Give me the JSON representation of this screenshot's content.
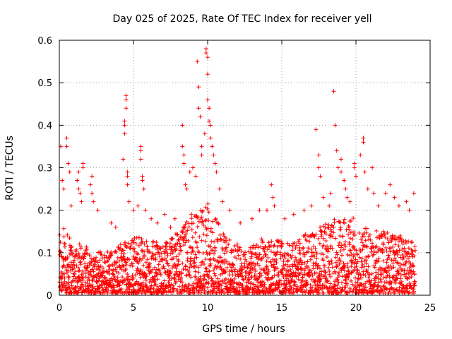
{
  "chart_data": {
    "type": "scatter",
    "title": "Day 025 of 2025, Rate Of TEC Index for receiver yell",
    "xlabel": "GPS time / hours",
    "ylabel": "ROTI / TECUs",
    "xlim": [
      0,
      25
    ],
    "ylim": [
      0,
      0.6
    ],
    "x_ticks": [
      "0",
      "5",
      "10",
      "15",
      "20",
      "25"
    ],
    "y_ticks": [
      "0",
      "0.1",
      "0.2",
      "0.3",
      "0.4",
      "0.5",
      "0.6"
    ],
    "grid": true,
    "marker": "+",
    "color": "#ff0000",
    "series": [
      {
        "points": [
          [
            0.1,
            0.35
          ],
          [
            0.2,
            0.27
          ],
          [
            0.3,
            0.25
          ],
          [
            0.5,
            0.37
          ],
          [
            0.5,
            0.35
          ],
          [
            0.6,
            0.31
          ],
          [
            0.7,
            0.29
          ],
          [
            0.8,
            0.21
          ],
          [
            1.2,
            0.27
          ],
          [
            1.3,
            0.25
          ],
          [
            1.3,
            0.29
          ],
          [
            1.4,
            0.24
          ],
          [
            1.5,
            0.22
          ],
          [
            1.6,
            0.31
          ],
          [
            1.6,
            0.3
          ],
          [
            2.1,
            0.26
          ],
          [
            2.2,
            0.28
          ],
          [
            2.2,
            0.24
          ],
          [
            2.3,
            0.22
          ],
          [
            2.6,
            0.2
          ],
          [
            3.5,
            0.17
          ],
          [
            3.8,
            0.16
          ],
          [
            4.3,
            0.32
          ],
          [
            4.4,
            0.41
          ],
          [
            4.4,
            0.4
          ],
          [
            4.4,
            0.38
          ],
          [
            4.5,
            0.47
          ],
          [
            4.5,
            0.46
          ],
          [
            4.5,
            0.44
          ],
          [
            4.6,
            0.29
          ],
          [
            4.6,
            0.28
          ],
          [
            4.6,
            0.26
          ],
          [
            4.7,
            0.22
          ],
          [
            5.0,
            0.2
          ],
          [
            5.3,
            0.21
          ],
          [
            5.5,
            0.35
          ],
          [
            5.5,
            0.34
          ],
          [
            5.5,
            0.32
          ],
          [
            5.6,
            0.28
          ],
          [
            5.6,
            0.27
          ],
          [
            5.7,
            0.25
          ],
          [
            5.8,
            0.2
          ],
          [
            6.2,
            0.18
          ],
          [
            6.6,
            0.17
          ],
          [
            7.1,
            0.19
          ],
          [
            7.5,
            0.16
          ],
          [
            7.8,
            0.18
          ],
          [
            8.3,
            0.4
          ],
          [
            8.3,
            0.35
          ],
          [
            8.4,
            0.33
          ],
          [
            8.4,
            0.31
          ],
          [
            8.5,
            0.26
          ],
          [
            8.6,
            0.25
          ],
          [
            8.8,
            0.29
          ],
          [
            9.0,
            0.3
          ],
          [
            9.2,
            0.28
          ],
          [
            9.3,
            0.55
          ],
          [
            9.4,
            0.49
          ],
          [
            9.4,
            0.44
          ],
          [
            9.5,
            0.42
          ],
          [
            9.6,
            0.35
          ],
          [
            9.6,
            0.33
          ],
          [
            9.8,
            0.38
          ],
          [
            9.9,
            0.58
          ],
          [
            9.9,
            0.57
          ],
          [
            10.0,
            0.56
          ],
          [
            10.0,
            0.52
          ],
          [
            10.0,
            0.46
          ],
          [
            10.1,
            0.44
          ],
          [
            10.1,
            0.41
          ],
          [
            10.2,
            0.4
          ],
          [
            10.2,
            0.37
          ],
          [
            10.3,
            0.35
          ],
          [
            10.4,
            0.33
          ],
          [
            10.5,
            0.31
          ],
          [
            10.6,
            0.29
          ],
          [
            10.8,
            0.25
          ],
          [
            11.0,
            0.22
          ],
          [
            11.5,
            0.2
          ],
          [
            12.2,
            0.17
          ],
          [
            13.0,
            0.18
          ],
          [
            13.5,
            0.2
          ],
          [
            14.0,
            0.2
          ],
          [
            14.3,
            0.26
          ],
          [
            14.4,
            0.23
          ],
          [
            14.5,
            0.21
          ],
          [
            15.2,
            0.18
          ],
          [
            15.8,
            0.19
          ],
          [
            16.5,
            0.2
          ],
          [
            17.0,
            0.21
          ],
          [
            17.3,
            0.39
          ],
          [
            17.5,
            0.33
          ],
          [
            17.5,
            0.3
          ],
          [
            17.6,
            0.28
          ],
          [
            17.8,
            0.23
          ],
          [
            18.2,
            0.21
          ],
          [
            18.3,
            0.24
          ],
          [
            18.5,
            0.48
          ],
          [
            18.6,
            0.4
          ],
          [
            18.7,
            0.34
          ],
          [
            18.8,
            0.3
          ],
          [
            19.0,
            0.32
          ],
          [
            19.0,
            0.29
          ],
          [
            19.2,
            0.27
          ],
          [
            19.3,
            0.25
          ],
          [
            19.4,
            0.23
          ],
          [
            19.6,
            0.22
          ],
          [
            19.9,
            0.31
          ],
          [
            19.9,
            0.3
          ],
          [
            20.0,
            0.28
          ],
          [
            20.3,
            0.33
          ],
          [
            20.5,
            0.37
          ],
          [
            20.5,
            0.36
          ],
          [
            20.6,
            0.29
          ],
          [
            20.8,
            0.25
          ],
          [
            21.1,
            0.3
          ],
          [
            21.2,
            0.24
          ],
          [
            21.5,
            0.21
          ],
          [
            22.0,
            0.24
          ],
          [
            22.3,
            0.26
          ],
          [
            22.6,
            0.23
          ],
          [
            22.9,
            0.21
          ],
          [
            23.4,
            0.22
          ],
          [
            23.6,
            0.2
          ],
          [
            23.9,
            0.24
          ]
        ]
      }
    ],
    "dense_band": {
      "x_range": [
        0,
        24
      ],
      "baseline": 0.045,
      "upper_envelope": [
        [
          0,
          0.17
        ],
        [
          1,
          0.13
        ],
        [
          2,
          0.11
        ],
        [
          3,
          0.1
        ],
        [
          4,
          0.12
        ],
        [
          5,
          0.14
        ],
        [
          6,
          0.13
        ],
        [
          7,
          0.12
        ],
        [
          8,
          0.15
        ],
        [
          9,
          0.2
        ],
        [
          10,
          0.22
        ],
        [
          11,
          0.15
        ],
        [
          12,
          0.12
        ],
        [
          13,
          0.12
        ],
        [
          14,
          0.14
        ],
        [
          15,
          0.13
        ],
        [
          16,
          0.14
        ],
        [
          17,
          0.15
        ],
        [
          18,
          0.17
        ],
        [
          19,
          0.19
        ],
        [
          20,
          0.18
        ],
        [
          21,
          0.15
        ],
        [
          22,
          0.16
        ],
        [
          23,
          0.14
        ],
        [
          24,
          0.12
        ]
      ],
      "lower_bound": 0.005
    }
  }
}
